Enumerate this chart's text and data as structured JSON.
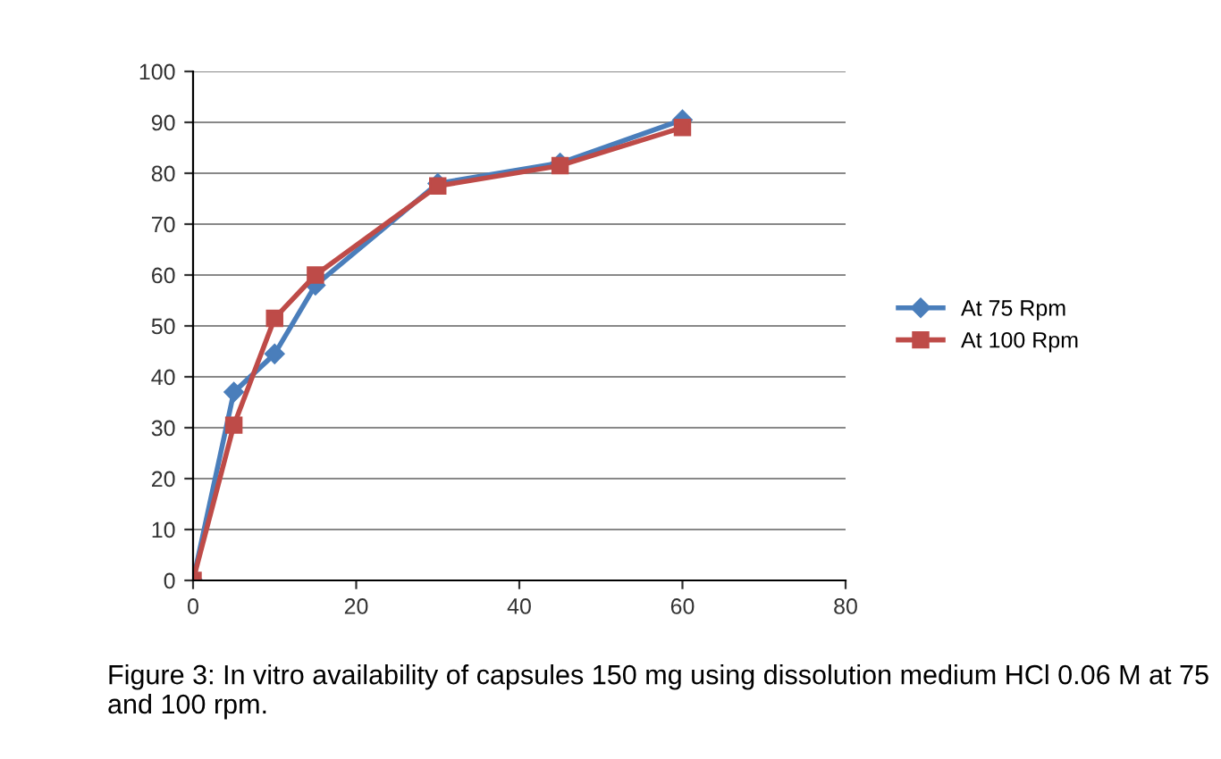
{
  "chart_data": {
    "type": "line",
    "x": [
      0,
      5,
      10,
      15,
      30,
      45,
      60
    ],
    "series": [
      {
        "name": "At 75 Rpm",
        "color": "#4a7ebb",
        "marker": "diamond",
        "values": [
          0,
          37,
          44.5,
          58,
          78,
          82,
          90.5
        ]
      },
      {
        "name": "At 100 Rpm",
        "color": "#be4b48",
        "marker": "square",
        "values": [
          0,
          30.5,
          51.5,
          60,
          77.5,
          81.5,
          89
        ]
      }
    ],
    "xlim": [
      0,
      80
    ],
    "xticks": [
      0,
      20,
      40,
      60,
      80
    ],
    "ylim": [
      0,
      100
    ],
    "yticks": [
      0,
      10,
      20,
      30,
      40,
      50,
      60,
      70,
      80,
      90,
      100
    ],
    "grid": "y",
    "legend": "right",
    "line_style": "solid",
    "annotations": [
      "Figure 3: In vitro availability of capsules 150 mg using dissolution medium HCl 0.06 M at 75 and 100 rpm."
    ]
  }
}
